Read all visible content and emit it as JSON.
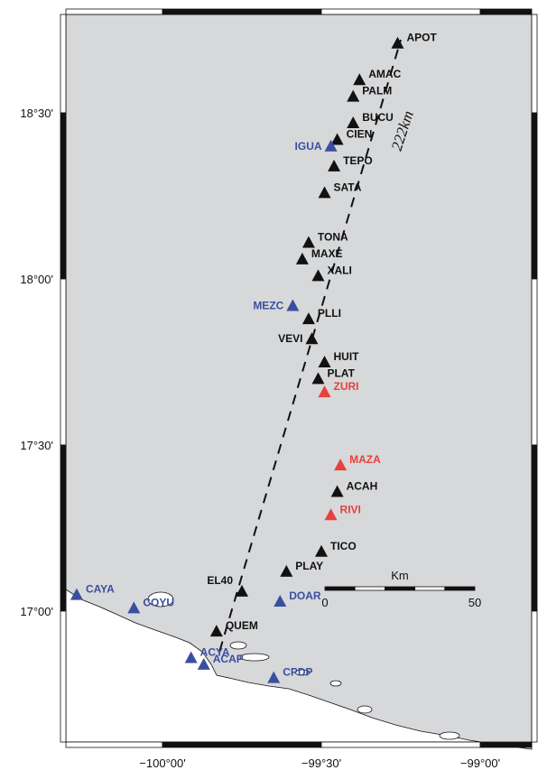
{
  "map": {
    "title": "",
    "profile_label": "222km",
    "colors": {
      "land": "#d7d8da",
      "sea": "#ffffff",
      "frame_dark": "#111111",
      "station_default": "#111111",
      "station_blue": "#3a4fa0",
      "station_red": "#e8403a",
      "label_default": "#111111",
      "label_blue": "#3a4fa0",
      "label_red": "#e8403a"
    },
    "lon_ticks": [
      {
        "label": "−100°00'",
        "lon": -100.0
      },
      {
        "label": "−99°30'",
        "lon": -99.5
      },
      {
        "label": "−99°00'",
        "lon": -99.0
      }
    ],
    "lat_ticks": [
      {
        "label": "18°30'",
        "lat": 18.5
      },
      {
        "label": "18°00'",
        "lat": 18.0
      },
      {
        "label": "17°30'",
        "lat": 17.5
      },
      {
        "label": "17°00'",
        "lat": 17.0
      }
    ],
    "scale_bar": {
      "unit": "Km",
      "min_label": "0",
      "max_label": "50",
      "km": 50
    },
    "profile": {
      "start": [
        -99.82,
        16.88
      ],
      "end": [
        -99.25,
        18.72
      ]
    },
    "stations": [
      {
        "name": "APOT",
        "lon": -99.26,
        "lat": 18.71,
        "color": "default"
      },
      {
        "name": "AMAC",
        "lon": -99.38,
        "lat": 18.6,
        "color": "default"
      },
      {
        "name": "PALM",
        "lon": -99.4,
        "lat": 18.55,
        "color": "default"
      },
      {
        "name": "BUCU",
        "lon": -99.4,
        "lat": 18.47,
        "color": "default"
      },
      {
        "name": "CIEN",
        "lon": -99.45,
        "lat": 18.42,
        "color": "default"
      },
      {
        "name": "IGUA",
        "lon": -99.47,
        "lat": 18.4,
        "color": "blue"
      },
      {
        "name": "TEPO",
        "lon": -99.46,
        "lat": 18.34,
        "color": "default"
      },
      {
        "name": "SATA",
        "lon": -99.49,
        "lat": 18.26,
        "color": "default"
      },
      {
        "name": "TONA",
        "lon": -99.54,
        "lat": 18.11,
        "color": "default"
      },
      {
        "name": "MAXE",
        "lon": -99.56,
        "lat": 18.06,
        "color": "default"
      },
      {
        "name": "XALI",
        "lon": -99.51,
        "lat": 18.01,
        "color": "default"
      },
      {
        "name": "MEZC",
        "lon": -99.59,
        "lat": 17.92,
        "color": "blue"
      },
      {
        "name": "PLLI",
        "lon": -99.54,
        "lat": 17.88,
        "color": "default"
      },
      {
        "name": "VEVI",
        "lon": -99.53,
        "lat": 17.82,
        "color": "default"
      },
      {
        "name": "HUIT",
        "lon": -99.49,
        "lat": 17.75,
        "color": "default"
      },
      {
        "name": "PLAT",
        "lon": -99.51,
        "lat": 17.7,
        "color": "default"
      },
      {
        "name": "ZURI",
        "lon": -99.49,
        "lat": 17.66,
        "color": "red"
      },
      {
        "name": "MAZA",
        "lon": -99.44,
        "lat": 17.44,
        "color": "red"
      },
      {
        "name": "ACAH",
        "lon": -99.45,
        "lat": 17.36,
        "color": "default"
      },
      {
        "name": "RIVI",
        "lon": -99.47,
        "lat": 17.29,
        "color": "red"
      },
      {
        "name": "TICO",
        "lon": -99.5,
        "lat": 17.18,
        "color": "default"
      },
      {
        "name": "PLAY",
        "lon": -99.61,
        "lat": 17.12,
        "color": "default"
      },
      {
        "name": "EL40",
        "lon": -99.75,
        "lat": 17.06,
        "color": "default"
      },
      {
        "name": "DOAR",
        "lon": -99.63,
        "lat": 17.03,
        "color": "blue"
      },
      {
        "name": "QUEM",
        "lon": -99.83,
        "lat": 16.94,
        "color": "default"
      },
      {
        "name": "CAYA",
        "lon": -100.27,
        "lat": 17.05,
        "color": "blue"
      },
      {
        "name": "COYU",
        "lon": -100.09,
        "lat": 17.01,
        "color": "blue"
      },
      {
        "name": "ACYA",
        "lon": -99.91,
        "lat": 16.86,
        "color": "blue"
      },
      {
        "name": "ACAP",
        "lon": -99.87,
        "lat": 16.84,
        "color": "blue"
      },
      {
        "name": "CPDP",
        "lon": -99.65,
        "lat": 16.8,
        "color": "blue"
      }
    ]
  }
}
